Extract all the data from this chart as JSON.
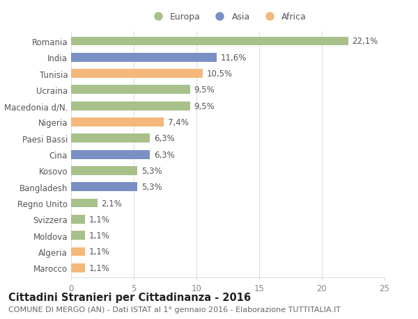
{
  "categories": [
    "Marocco",
    "Algeria",
    "Moldova",
    "Svizzera",
    "Regno Unito",
    "Bangladesh",
    "Kosovo",
    "Cina",
    "Paesi Bassi",
    "Nigeria",
    "Macedonia d/N.",
    "Ucraina",
    "Tunisia",
    "India",
    "Romania"
  ],
  "values": [
    1.1,
    1.1,
    1.1,
    1.1,
    2.1,
    5.3,
    5.3,
    6.3,
    6.3,
    7.4,
    9.5,
    9.5,
    10.5,
    11.6,
    22.1
  ],
  "labels": [
    "1,1%",
    "1,1%",
    "1,1%",
    "1,1%",
    "2,1%",
    "5,3%",
    "5,3%",
    "6,3%",
    "6,3%",
    "7,4%",
    "9,5%",
    "9,5%",
    "10,5%",
    "11,6%",
    "22,1%"
  ],
  "colors": [
    "#f4b87a",
    "#f4b87a",
    "#a8c08a",
    "#a8c08a",
    "#a8c08a",
    "#7a8fc4",
    "#a8c08a",
    "#7a8fc4",
    "#a8c08a",
    "#f4b87a",
    "#a8c08a",
    "#a8c08a",
    "#f4b87a",
    "#7a8fc4",
    "#a8c08a"
  ],
  "legend": [
    {
      "label": "Europa",
      "color": "#a8c08a"
    },
    {
      "label": "Asia",
      "color": "#7a8fc4"
    },
    {
      "label": "Africa",
      "color": "#f4b87a"
    }
  ],
  "title": "Cittadini Stranieri per Cittadinanza - 2016",
  "subtitle": "COMUNE DI MERGO (AN) - Dati ISTAT al 1° gennaio 2016 - Elaborazione TUTTITALIA.IT",
  "xlim": [
    0,
    25
  ],
  "xticks": [
    0,
    5,
    10,
    15,
    20,
    25
  ],
  "background_color": "#ffffff",
  "grid_color": "#dddddd",
  "bar_height": 0.55,
  "title_fontsize": 10.5,
  "subtitle_fontsize": 8,
  "label_fontsize": 8.5,
  "tick_fontsize": 8.5
}
